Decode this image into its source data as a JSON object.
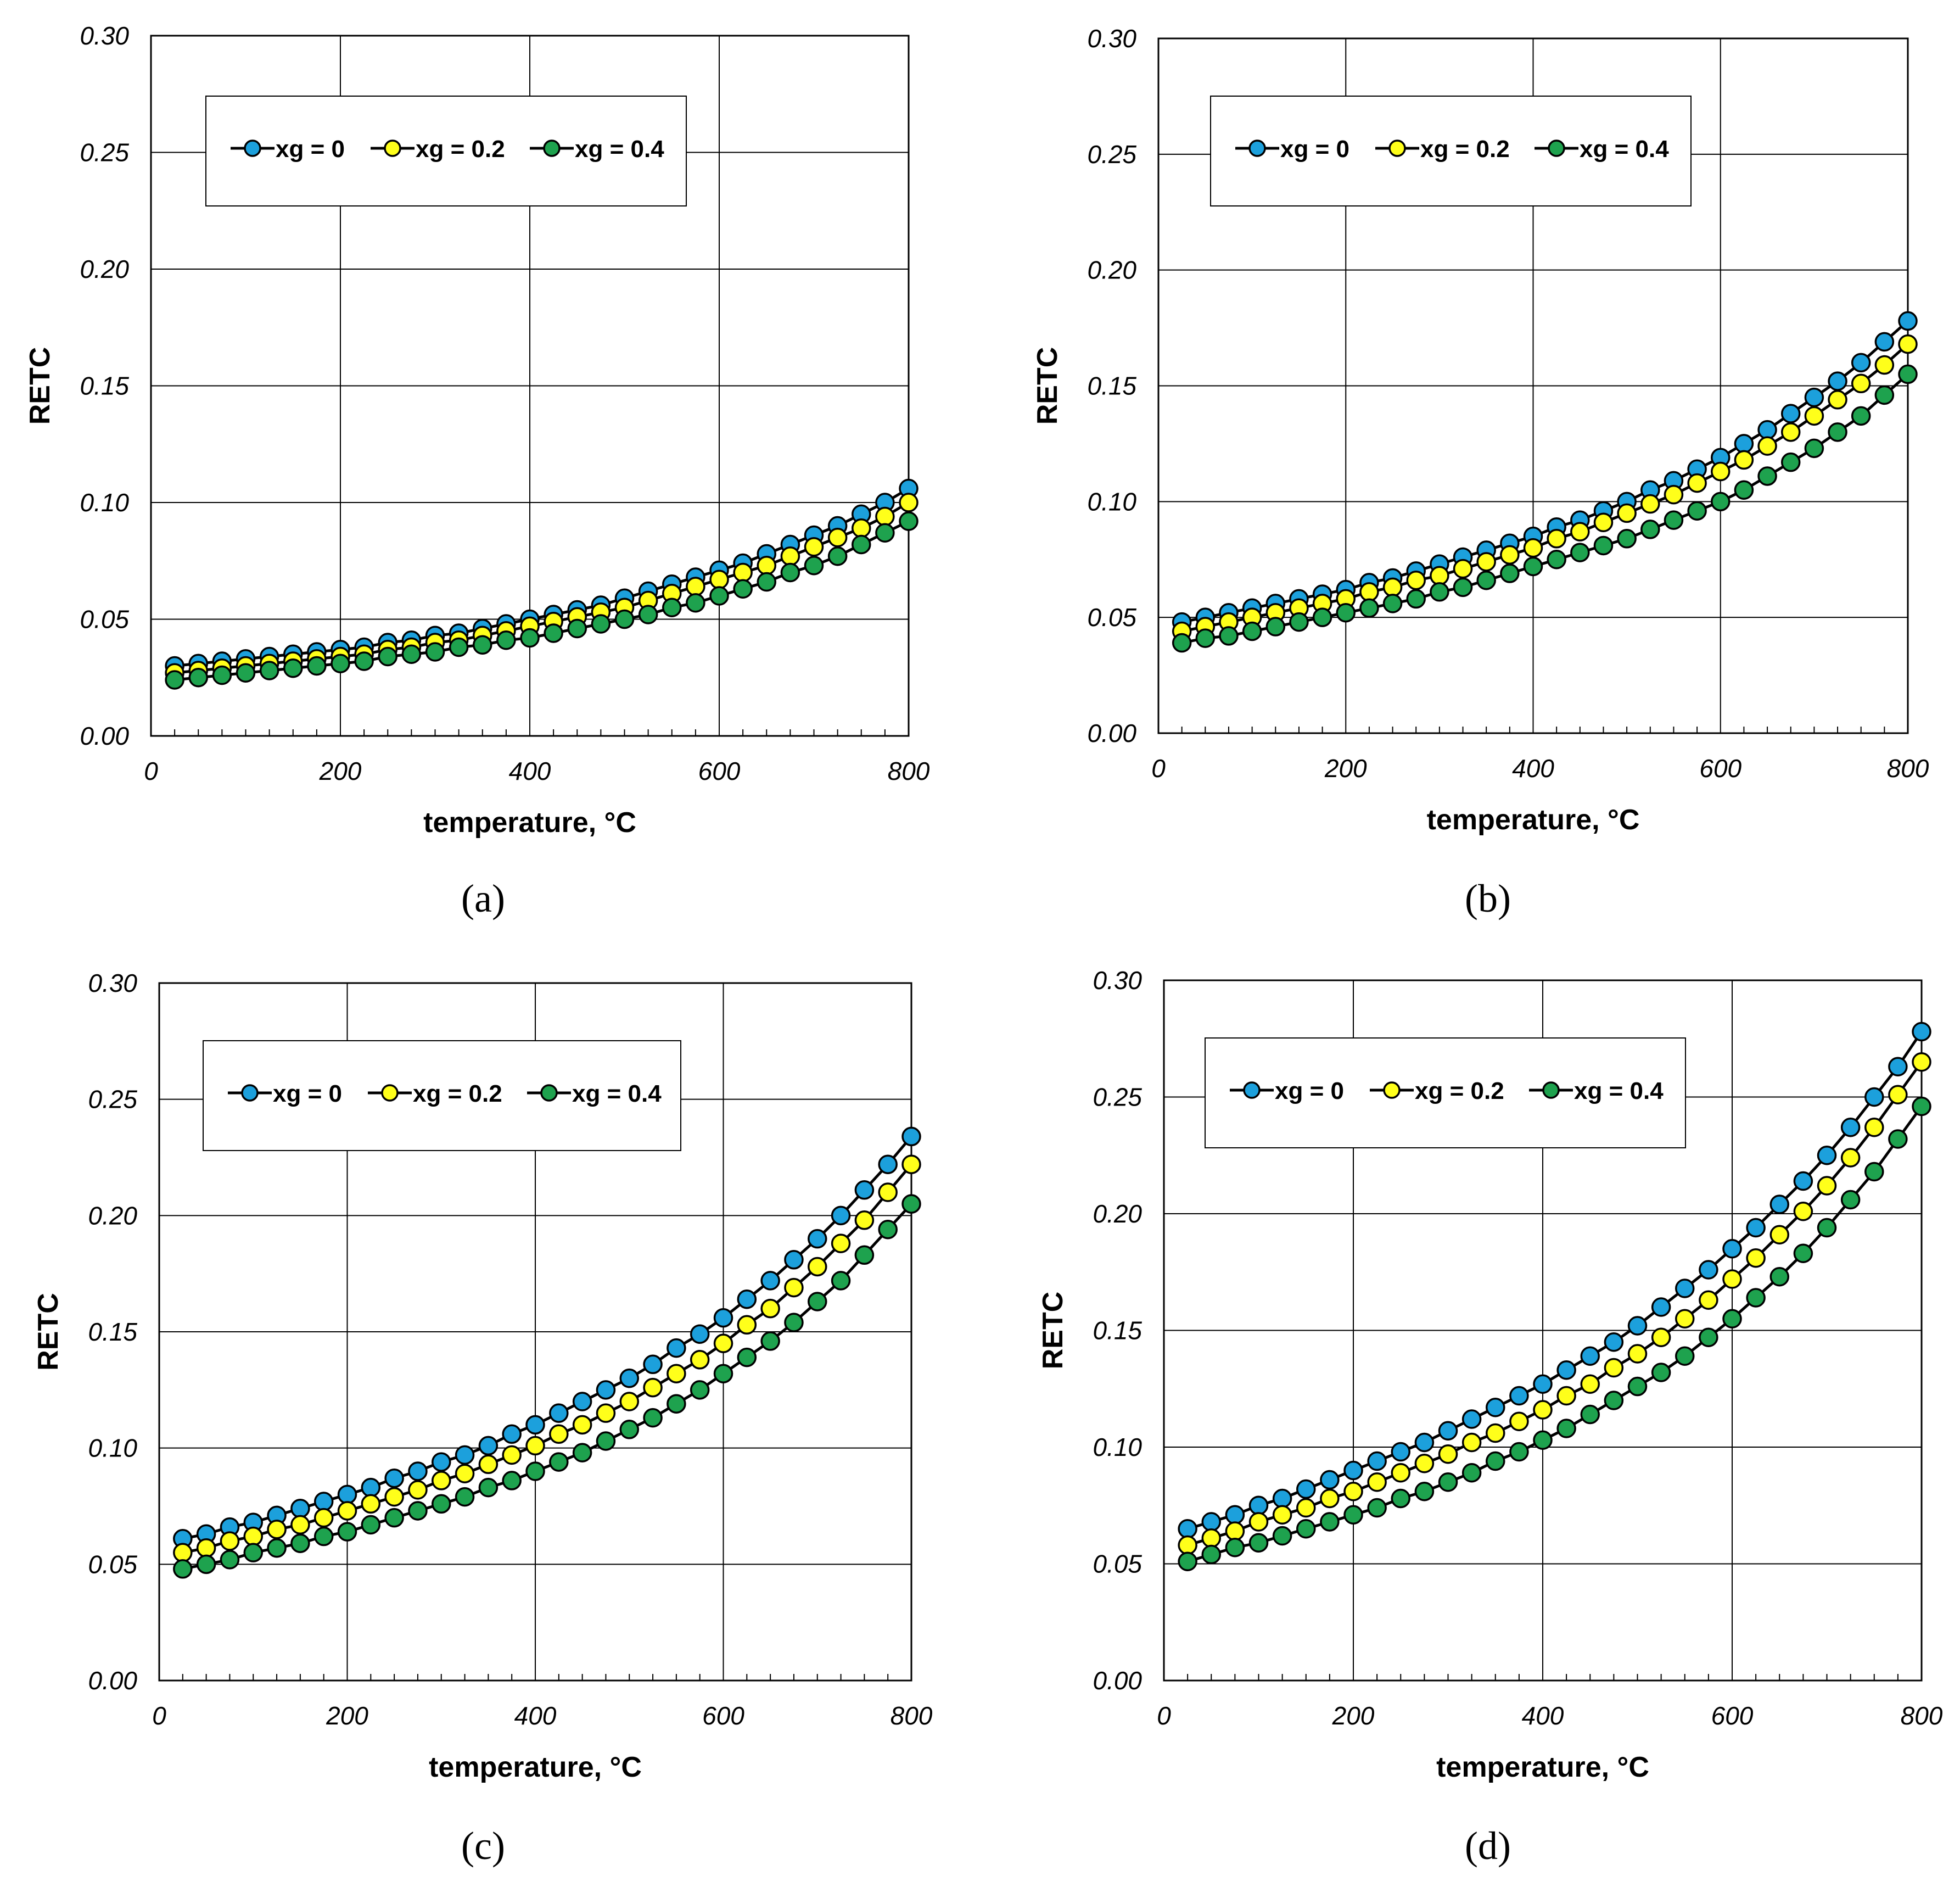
{
  "colors": {
    "xg0": "#1CA0DC",
    "xg02": "#FFFF1A",
    "xg04": "#1EA24E",
    "line": "#000000",
    "grid": "#000000"
  },
  "chart_data": [
    {
      "panel_label": "(a)",
      "type": "line",
      "xlabel": "temperature, °C",
      "ylabel": "RETC",
      "xlim": [
        0,
        800
      ],
      "ylim": [
        0,
        0.3
      ],
      "xticks": [
        "0",
        "200",
        "400",
        "600",
        "800"
      ],
      "yticks": [
        "0.00",
        "0.05",
        "0.10",
        "0.15",
        "0.20",
        "0.25",
        "0.30"
      ],
      "grid": true,
      "legend_position": "top-left",
      "x": [
        25,
        50,
        75,
        100,
        125,
        150,
        175,
        200,
        225,
        250,
        275,
        300,
        325,
        350,
        375,
        400,
        425,
        450,
        475,
        500,
        525,
        550,
        575,
        600,
        625,
        650,
        675,
        700,
        725,
        750,
        775,
        800
      ],
      "series": [
        {
          "name": "xg = 0",
          "values": [
            0.03,
            0.031,
            0.032,
            0.033,
            0.034,
            0.035,
            0.036,
            0.037,
            0.038,
            0.04,
            0.041,
            0.043,
            0.044,
            0.046,
            0.048,
            0.05,
            0.052,
            0.054,
            0.056,
            0.059,
            0.062,
            0.065,
            0.068,
            0.071,
            0.074,
            0.078,
            0.082,
            0.086,
            0.09,
            0.095,
            0.1,
            0.106
          ]
        },
        {
          "name": "xg = 0.2",
          "values": [
            0.027,
            0.028,
            0.029,
            0.03,
            0.031,
            0.032,
            0.033,
            0.034,
            0.035,
            0.037,
            0.038,
            0.04,
            0.041,
            0.043,
            0.045,
            0.047,
            0.049,
            0.051,
            0.053,
            0.055,
            0.058,
            0.061,
            0.064,
            0.067,
            0.07,
            0.073,
            0.077,
            0.081,
            0.085,
            0.089,
            0.094,
            0.1
          ]
        },
        {
          "name": "xg = 0.4",
          "values": [
            0.024,
            0.025,
            0.026,
            0.027,
            0.028,
            0.029,
            0.03,
            0.031,
            0.032,
            0.034,
            0.035,
            0.036,
            0.038,
            0.039,
            0.041,
            0.042,
            0.044,
            0.046,
            0.048,
            0.05,
            0.052,
            0.055,
            0.057,
            0.06,
            0.063,
            0.066,
            0.07,
            0.073,
            0.077,
            0.082,
            0.087,
            0.092
          ]
        }
      ]
    },
    {
      "panel_label": "(b)",
      "type": "line",
      "xlabel": "temperature, °C",
      "ylabel": "RETC",
      "xlim": [
        0,
        800
      ],
      "ylim": [
        0,
        0.3
      ],
      "xticks": [
        "0",
        "200",
        "400",
        "600",
        "800"
      ],
      "yticks": [
        "0.00",
        "0.05",
        "0.10",
        "0.15",
        "0.20",
        "0.25",
        "0.30"
      ],
      "grid": true,
      "legend_position": "top-left",
      "x": [
        25,
        50,
        75,
        100,
        125,
        150,
        175,
        200,
        225,
        250,
        275,
        300,
        325,
        350,
        375,
        400,
        425,
        450,
        475,
        500,
        525,
        550,
        575,
        600,
        625,
        650,
        675,
        700,
        725,
        750,
        775,
        800
      ],
      "series": [
        {
          "name": "xg = 0",
          "values": [
            0.048,
            0.05,
            0.052,
            0.054,
            0.056,
            0.058,
            0.06,
            0.062,
            0.065,
            0.067,
            0.07,
            0.073,
            0.076,
            0.079,
            0.082,
            0.085,
            0.089,
            0.092,
            0.096,
            0.1,
            0.105,
            0.109,
            0.114,
            0.119,
            0.125,
            0.131,
            0.138,
            0.145,
            0.152,
            0.16,
            0.169,
            0.178
          ]
        },
        {
          "name": "xg = 0.2",
          "values": [
            0.044,
            0.046,
            0.048,
            0.05,
            0.052,
            0.054,
            0.056,
            0.058,
            0.061,
            0.063,
            0.066,
            0.068,
            0.071,
            0.074,
            0.077,
            0.08,
            0.084,
            0.087,
            0.091,
            0.095,
            0.099,
            0.103,
            0.108,
            0.113,
            0.118,
            0.124,
            0.13,
            0.137,
            0.144,
            0.151,
            0.159,
            0.168
          ]
        },
        {
          "name": "xg = 0.4",
          "values": [
            0.039,
            0.041,
            0.042,
            0.044,
            0.046,
            0.048,
            0.05,
            0.052,
            0.054,
            0.056,
            0.058,
            0.061,
            0.063,
            0.066,
            0.069,
            0.072,
            0.075,
            0.078,
            0.081,
            0.084,
            0.088,
            0.092,
            0.096,
            0.1,
            0.105,
            0.111,
            0.117,
            0.123,
            0.13,
            0.137,
            0.146,
            0.155
          ]
        }
      ]
    },
    {
      "panel_label": "(c)",
      "type": "line",
      "xlabel": "temperature, °C",
      "ylabel": "RETC",
      "xlim": [
        0,
        800
      ],
      "ylim": [
        0,
        0.3
      ],
      "xticks": [
        "0",
        "200",
        "400",
        "600",
        "800"
      ],
      "yticks": [
        "0.00",
        "0.05",
        "0.10",
        "0.15",
        "0.20",
        "0.25",
        "0.30"
      ],
      "grid": true,
      "legend_position": "top-left",
      "x": [
        25,
        50,
        75,
        100,
        125,
        150,
        175,
        200,
        225,
        250,
        275,
        300,
        325,
        350,
        375,
        400,
        425,
        450,
        475,
        500,
        525,
        550,
        575,
        600,
        625,
        650,
        675,
        700,
        725,
        750,
        775,
        800
      ],
      "series": [
        {
          "name": "xg = 0",
          "values": [
            0.061,
            0.063,
            0.066,
            0.068,
            0.071,
            0.074,
            0.077,
            0.08,
            0.083,
            0.087,
            0.09,
            0.094,
            0.097,
            0.101,
            0.106,
            0.11,
            0.115,
            0.12,
            0.125,
            0.13,
            0.136,
            0.143,
            0.149,
            0.156,
            0.164,
            0.172,
            0.181,
            0.19,
            0.2,
            0.211,
            0.222,
            0.234
          ]
        },
        {
          "name": "xg = 0.2",
          "values": [
            0.055,
            0.057,
            0.06,
            0.062,
            0.065,
            0.067,
            0.07,
            0.073,
            0.076,
            0.079,
            0.082,
            0.086,
            0.089,
            0.093,
            0.097,
            0.101,
            0.106,
            0.11,
            0.115,
            0.12,
            0.126,
            0.132,
            0.138,
            0.145,
            0.153,
            0.16,
            0.169,
            0.178,
            0.188,
            0.198,
            0.21,
            0.222
          ]
        },
        {
          "name": "xg = 0.4",
          "values": [
            0.048,
            0.05,
            0.052,
            0.055,
            0.057,
            0.059,
            0.062,
            0.064,
            0.067,
            0.07,
            0.073,
            0.076,
            0.079,
            0.083,
            0.086,
            0.09,
            0.094,
            0.098,
            0.103,
            0.108,
            0.113,
            0.119,
            0.125,
            0.132,
            0.139,
            0.146,
            0.154,
            0.163,
            0.172,
            0.183,
            0.194,
            0.205
          ]
        }
      ]
    },
    {
      "panel_label": "(d)",
      "type": "line",
      "xlabel": "temperature, °C",
      "ylabel": "RETC",
      "xlim": [
        0,
        800
      ],
      "ylim": [
        0,
        0.3
      ],
      "xticks": [
        "0",
        "200",
        "400",
        "600",
        "800"
      ],
      "yticks": [
        "0.00",
        "0.05",
        "0.10",
        "0.15",
        "0.20",
        "0.25",
        "0.30"
      ],
      "grid": true,
      "legend_position": "top-left",
      "x": [
        25,
        50,
        75,
        100,
        125,
        150,
        175,
        200,
        225,
        250,
        275,
        300,
        325,
        350,
        375,
        400,
        425,
        450,
        475,
        500,
        525,
        550,
        575,
        600,
        625,
        650,
        675,
        700,
        725,
        750,
        775,
        800
      ],
      "series": [
        {
          "name": "xg = 0",
          "values": [
            0.065,
            0.068,
            0.071,
            0.075,
            0.078,
            0.082,
            0.086,
            0.09,
            0.094,
            0.098,
            0.102,
            0.107,
            0.112,
            0.117,
            0.122,
            0.127,
            0.133,
            0.139,
            0.145,
            0.152,
            0.16,
            0.168,
            0.176,
            0.185,
            0.194,
            0.204,
            0.214,
            0.225,
            0.237,
            0.25,
            0.263,
            0.278
          ]
        },
        {
          "name": "xg = 0.2",
          "values": [
            0.058,
            0.061,
            0.064,
            0.068,
            0.071,
            0.074,
            0.078,
            0.081,
            0.085,
            0.089,
            0.093,
            0.097,
            0.102,
            0.106,
            0.111,
            0.116,
            0.122,
            0.127,
            0.134,
            0.14,
            0.147,
            0.155,
            0.163,
            0.172,
            0.181,
            0.191,
            0.201,
            0.212,
            0.224,
            0.237,
            0.251,
            0.265
          ]
        },
        {
          "name": "xg = 0.4",
          "values": [
            0.051,
            0.054,
            0.057,
            0.059,
            0.062,
            0.065,
            0.068,
            0.071,
            0.074,
            0.078,
            0.081,
            0.085,
            0.089,
            0.094,
            0.098,
            0.103,
            0.108,
            0.114,
            0.12,
            0.126,
            0.132,
            0.139,
            0.147,
            0.155,
            0.164,
            0.173,
            0.183,
            0.194,
            0.206,
            0.218,
            0.232,
            0.246
          ]
        }
      ]
    }
  ]
}
